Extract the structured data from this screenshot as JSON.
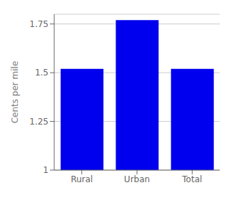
{
  "chart_data": {
    "type": "bar",
    "categories": [
      "Rural",
      "Urban",
      "Total"
    ],
    "values": [
      1.52,
      1.77,
      1.52
    ],
    "color": "#0000EE",
    "ylabel": "Cents per mile",
    "ylim": [
      1.0,
      1.8
    ],
    "yticks": [
      1.0,
      1.25,
      1.5,
      1.75
    ],
    "grid": true
  }
}
